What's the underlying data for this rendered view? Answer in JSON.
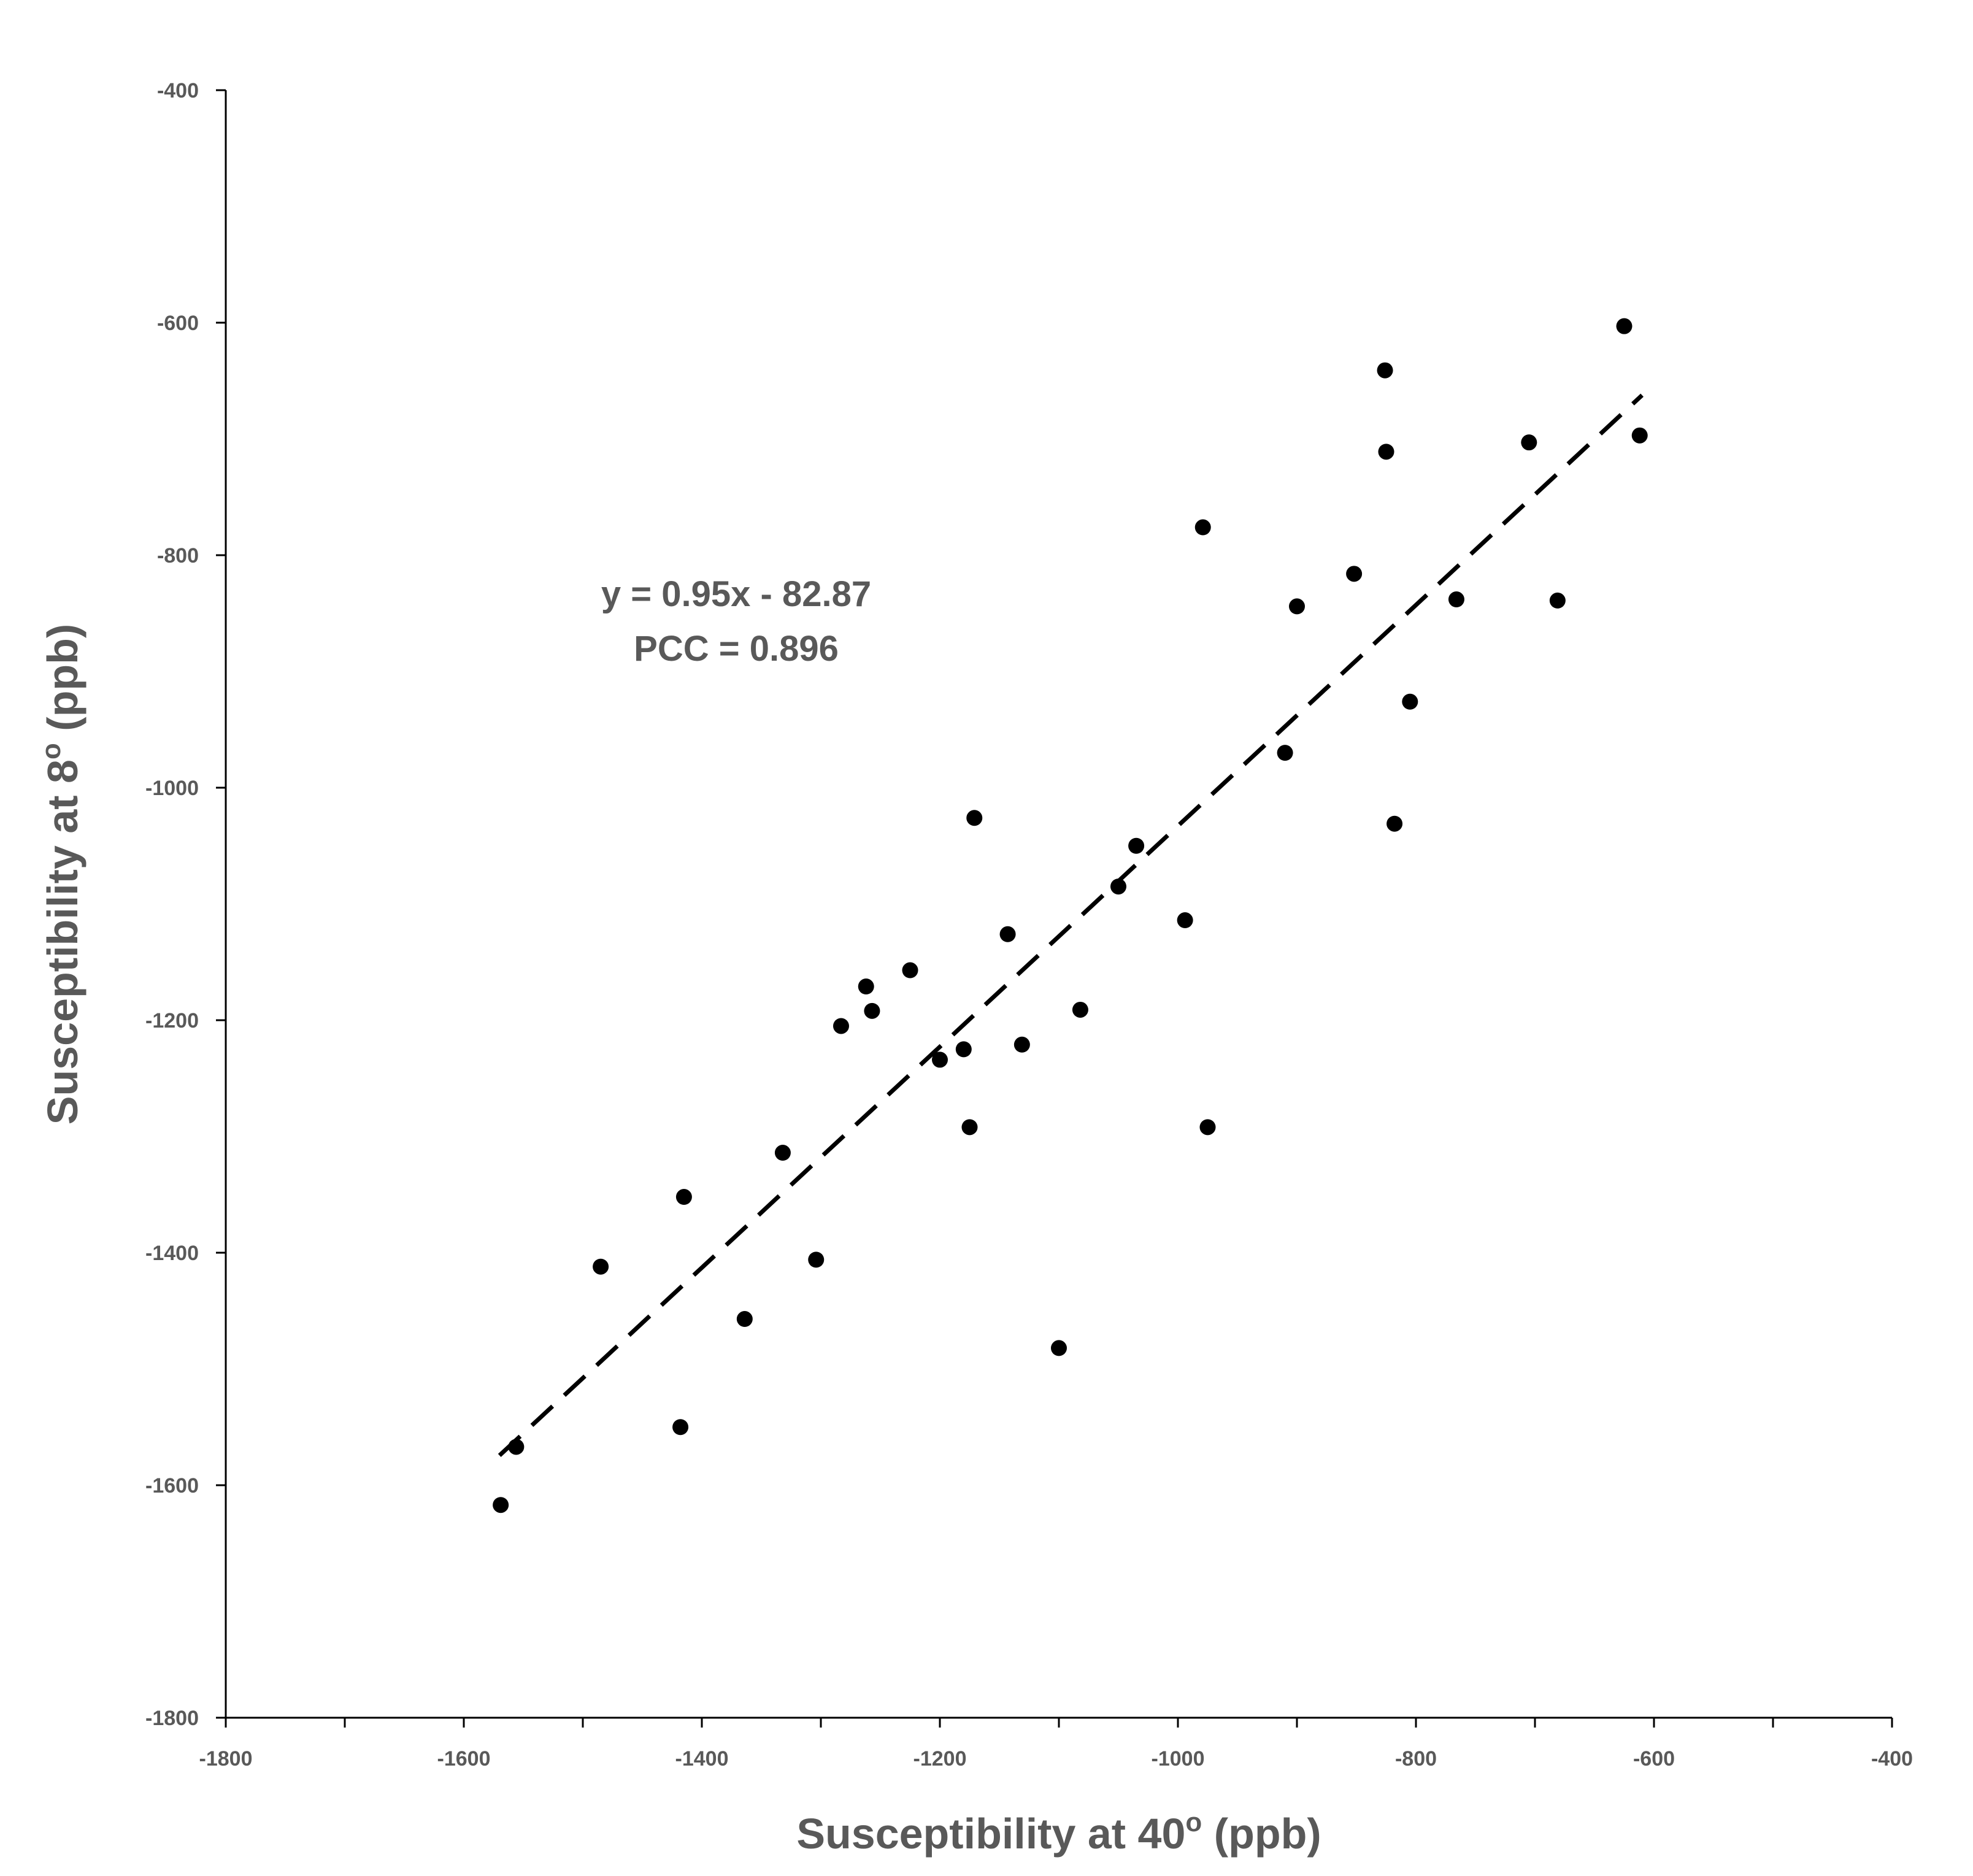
{
  "chart_data": {
    "type": "scatter",
    "xlabel": "Susceptibility at 40",
    "xlabel_sup": "o",
    "xlabel_unit": " (ppb)",
    "ylabel": "Susceptibility at 8",
    "ylabel_sup": "o",
    "ylabel_unit": " (ppb)",
    "xlim": [
      -1800,
      -400
    ],
    "ylim": [
      -1800,
      -400
    ],
    "x_ticks": [
      -1800,
      -1600,
      -1400,
      -1200,
      -1000,
      -800,
      -600,
      -400
    ],
    "y_ticks": [
      -400,
      -600,
      -800,
      -1000,
      -1200,
      -1400,
      -1600,
      -1800
    ],
    "x_tick_labels": [
      "-1800",
      "-1600",
      "-1400",
      "-1200",
      "-1000",
      "-800",
      "-600",
      "-400"
    ],
    "y_tick_labels": [
      "-400",
      "-600",
      "-800",
      "-1000",
      "-1200",
      "-1400",
      "-1600",
      "-1800"
    ],
    "grid": false,
    "annotations": [
      "y = 0.95x - 82.87",
      "PCC = 0.896"
    ],
    "trendline": {
      "slope": 0.95,
      "intercept": -82.87,
      "x_range": [
        -1570,
        -610
      ]
    },
    "points": [
      [
        -1569,
        -1617
      ],
      [
        -1556,
        -1567
      ],
      [
        -1485,
        -1412
      ],
      [
        -1418,
        -1550
      ],
      [
        -1415,
        -1352
      ],
      [
        -1364,
        -1457
      ],
      [
        -1332,
        -1314
      ],
      [
        -1304,
        -1406
      ],
      [
        -1283,
        -1205
      ],
      [
        -1262,
        -1171
      ],
      [
        -1257,
        -1192
      ],
      [
        -1225,
        -1157
      ],
      [
        -1200,
        -1234
      ],
      [
        -1180,
        -1225
      ],
      [
        -1175,
        -1292
      ],
      [
        -1171,
        -1026
      ],
      [
        -1143,
        -1126
      ],
      [
        -1131,
        -1221
      ],
      [
        -1100,
        -1482
      ],
      [
        -1082,
        -1191
      ],
      [
        -1050,
        -1085
      ],
      [
        -1035,
        -1050
      ],
      [
        -994,
        -1114
      ],
      [
        -979,
        -776
      ],
      [
        -975,
        -1292
      ],
      [
        -910,
        -970
      ],
      [
        -900,
        -844
      ],
      [
        -852,
        -816
      ],
      [
        -826,
        -641
      ],
      [
        -825,
        -711
      ],
      [
        -818,
        -1031
      ],
      [
        -805,
        -926
      ],
      [
        -766,
        -838
      ],
      [
        -705,
        -703
      ],
      [
        -681,
        -839
      ],
      [
        -625,
        -603
      ],
      [
        -612,
        -697
      ]
    ]
  }
}
